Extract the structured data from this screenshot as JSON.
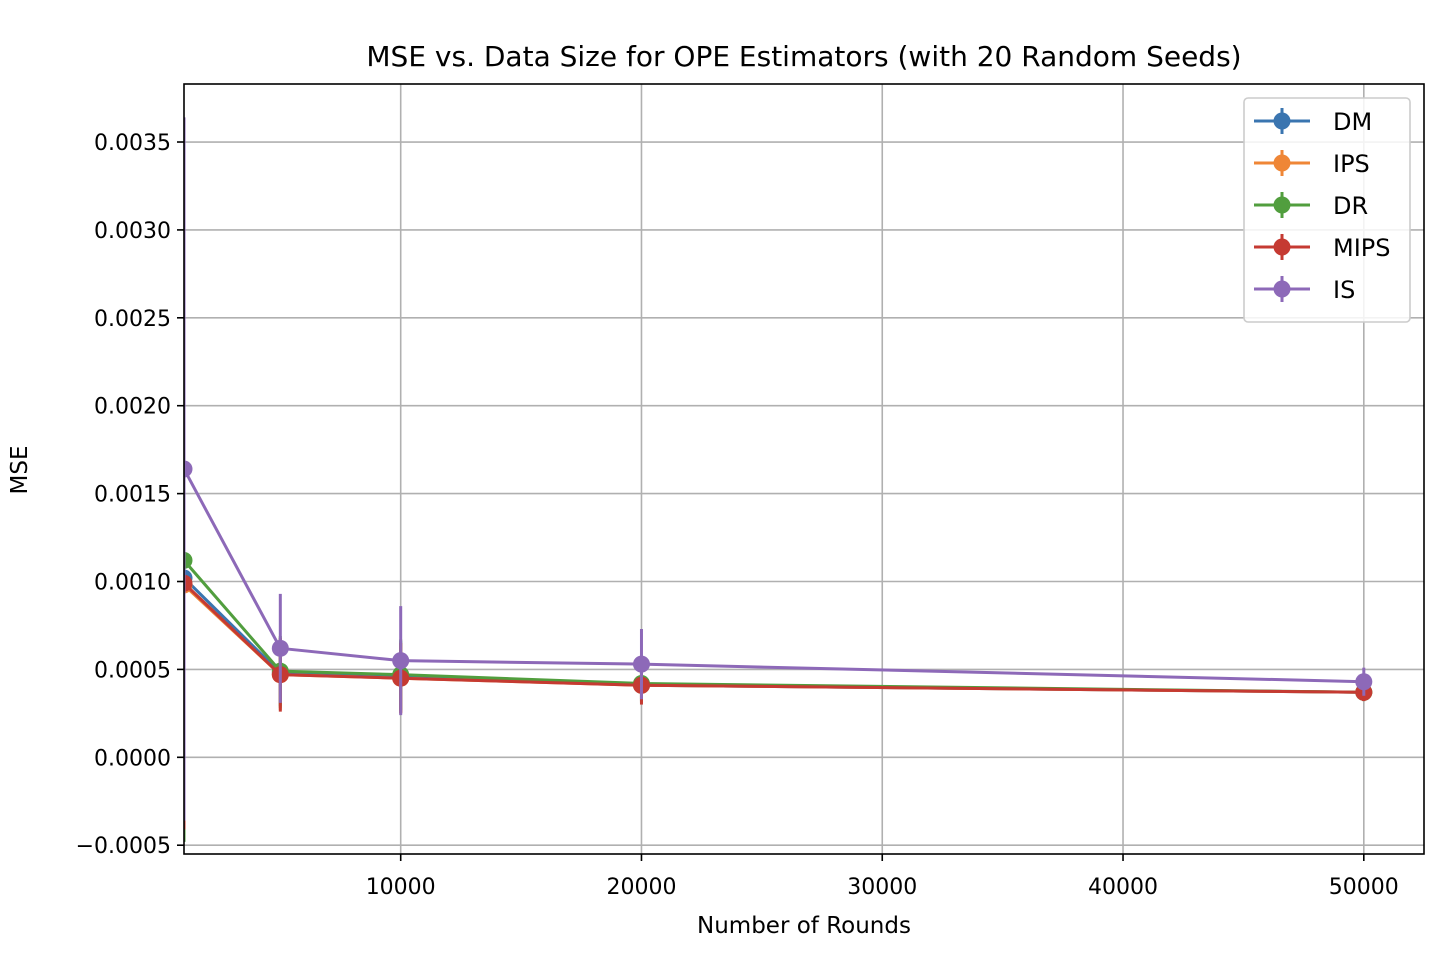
{
  "chart_data": {
    "type": "line",
    "title": "MSE vs. Data Size for OPE Estimators (with 20 Random Seeds)",
    "xlabel": "Number of Rounds",
    "ylabel": "MSE",
    "xlim": [
      1000,
      52500
    ],
    "ylim": [
      -0.00055,
      0.00383
    ],
    "xticks": [
      10000,
      20000,
      30000,
      40000,
      50000
    ],
    "xtick_labels": [
      "10000",
      "20000",
      "30000",
      "40000",
      "50000"
    ],
    "yticks": [
      -0.0005,
      0.0,
      0.0005,
      0.001,
      0.0015,
      0.002,
      0.0025,
      0.003,
      0.0035
    ],
    "ytick_labels": [
      "−0.0005",
      "0.0000",
      "0.0005",
      "0.0010",
      "0.0015",
      "0.0020",
      "0.0025",
      "0.0030",
      "0.0035"
    ],
    "grid": true,
    "legend_position": "top-right",
    "x": [
      1000,
      5000,
      10000,
      20000,
      50000
    ],
    "series": [
      {
        "name": "DM",
        "color": "#3a75b0",
        "values": [
          0.00102,
          0.00048,
          0.00046,
          0.00041,
          0.00037
        ],
        "errors": [
          0.0015,
          0.0002,
          0.0002,
          0.0001,
          5e-05
        ]
      },
      {
        "name": "IPS",
        "color": "#ef8636",
        "values": [
          0.00098,
          0.00047,
          0.00045,
          0.00041,
          0.00037
        ],
        "errors": [
          0.0014,
          0.0002,
          0.0002,
          0.0001,
          5e-05
        ]
      },
      {
        "name": "DR",
        "color": "#519e3e",
        "values": [
          0.00112,
          0.00049,
          0.00047,
          0.00042,
          0.00037
        ],
        "errors": [
          0.0016,
          0.0002,
          0.0002,
          0.0001,
          5e-05
        ]
      },
      {
        "name": "MIPS",
        "color": "#c53a32",
        "values": [
          0.00099,
          0.00047,
          0.00045,
          0.00041,
          0.00037
        ],
        "errors": [
          0.0014,
          0.00021,
          0.0002,
          0.00011,
          5e-05
        ]
      },
      {
        "name": "IS",
        "color": "#8d69b8",
        "values": [
          0.00164,
          0.00062,
          0.00055,
          0.00053,
          0.00043
        ],
        "errors": [
          0.002,
          0.00031,
          0.00031,
          0.0002,
          8e-05
        ]
      }
    ]
  }
}
